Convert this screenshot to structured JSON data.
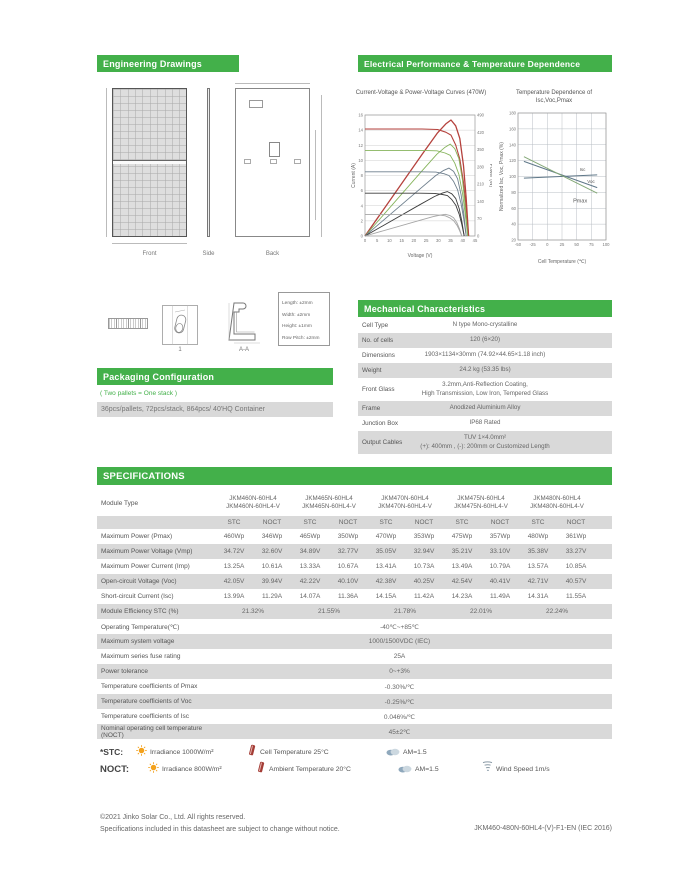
{
  "engineering": {
    "title": "Engineering Drawings",
    "views": [
      "Front",
      "Side",
      "Back"
    ],
    "detail_labels": [
      "1",
      "A-A"
    ],
    "tolerances": [
      "Length: ±2mm",
      "Width: ±2mm",
      "Height: ±1mm",
      "Row Pitch: ±2mm"
    ]
  },
  "electrical": {
    "title": "Electrical Performance & Temperature Dependence"
  },
  "mechanical": {
    "title": "Mechanical Characteristics",
    "rows": [
      {
        "label": "Cell  Type",
        "lines": [
          "N type Mono-crystalline"
        ]
      },
      {
        "label": "No. of cells",
        "lines": [
          "120 (6×20)"
        ]
      },
      {
        "label": "Dimensions",
        "lines": [
          "1903×1134×30mm (74.92×44.65×1.18 inch)"
        ]
      },
      {
        "label": "Weight",
        "lines": [
          "24.2 kg (53.35 lbs)"
        ]
      },
      {
        "label": "Front Glass",
        "lines": [
          "3.2mm,Anti-Reflection Coating,",
          "High Transmission, Low Iron, Tempered Glass"
        ]
      },
      {
        "label": "Frame",
        "lines": [
          "Anodized Aluminium Alloy"
        ]
      },
      {
        "label": "Junction Box",
        "lines": [
          "IP68 Rated"
        ]
      },
      {
        "label": "Output Cables",
        "lines": [
          "TUV  1×4.0mm²",
          "(+): 400mm , (-): 200mm or Customized Length"
        ]
      }
    ]
  },
  "packaging": {
    "title": "Packaging Configuration",
    "note": "( Two pallets = One stack )",
    "value": "36pcs/pallets, 72pcs/stack, 864pcs/ 40'HQ Container"
  },
  "specifications": {
    "title": "SPECIFICATIONS",
    "module_type_label": "Module Type",
    "modules": [
      [
        "JKM460N-60HL4",
        "JKM460N-60HL4-V"
      ],
      [
        "JKM465N-60HL4",
        "JKM465N-60HL4-V"
      ],
      [
        "JKM470N-60HL4",
        "JKM470N-60HL4-V"
      ],
      [
        "JKM475N-60HL4",
        "JKM475N-60HL4-V"
      ],
      [
        "JKM480N-60HL4",
        "JKM480N-60HL4-V"
      ]
    ],
    "col_headers": [
      "STC",
      "NOCT"
    ],
    "electrical_rows": [
      {
        "label": "Maximum Power (Pmax)",
        "values": [
          [
            "460Wp",
            "346Wp"
          ],
          [
            "465Wp",
            "350Wp"
          ],
          [
            "470Wp",
            "353Wp"
          ],
          [
            "475Wp",
            "357Wp"
          ],
          [
            "480Wp",
            "361Wp"
          ]
        ]
      },
      {
        "label": "Maximum Power Voltage (Vmp)",
        "values": [
          [
            "34.72V",
            "32.60V"
          ],
          [
            "34.89V",
            "32.77V"
          ],
          [
            "35.05V",
            "32.94V"
          ],
          [
            "35.21V",
            "33.10V"
          ],
          [
            "35.38V",
            "33.27V"
          ]
        ]
      },
      {
        "label": "Maximum Power Current (Imp)",
        "values": [
          [
            "13.25A",
            "10.61A"
          ],
          [
            "13.33A",
            "10.67A"
          ],
          [
            "13.41A",
            "10.73A"
          ],
          [
            "13.49A",
            "10.79A"
          ],
          [
            "13.57A",
            "10.85A"
          ]
        ]
      },
      {
        "label": "Open-circuit Voltage (Voc)",
        "values": [
          [
            "42.05V",
            "39.94V"
          ],
          [
            "42.22V",
            "40.10V"
          ],
          [
            "42.38V",
            "40.25V"
          ],
          [
            "42.54V",
            "40.41V"
          ],
          [
            "42.71V",
            "40.57V"
          ]
        ]
      },
      {
        "label": "Short-circuit Current (Isc)",
        "values": [
          [
            "13.99A",
            "11.29A"
          ],
          [
            "14.07A",
            "11.36A"
          ],
          [
            "14.15A",
            "11.42A"
          ],
          [
            "14.23A",
            "11.49A"
          ],
          [
            "14.31A",
            "11.55A"
          ]
        ]
      }
    ],
    "efficiency_row": {
      "label": "Module Efficiency STC (%)",
      "values": [
        "21.32%",
        "21.55%",
        "21.78%",
        "22.01%",
        "22.24%"
      ]
    },
    "general_rows": [
      {
        "label": "Operating Temperature(℃)",
        "value": "-40℃~+85℃"
      },
      {
        "label": "Maximum system voltage",
        "value": "1000/1500VDC (IEC)"
      },
      {
        "label": "Maximum series fuse rating",
        "value": "25A"
      },
      {
        "label": "Power tolerance",
        "value": "0~+3%"
      },
      {
        "label": "Temperature coefficients of Pmax",
        "value": "-0.30%/℃"
      },
      {
        "label": "Temperature coefficients of Voc",
        "value": "-0.25%/℃"
      },
      {
        "label": "Temperature coefficients of Isc",
        "value": "0.046%/℃"
      },
      {
        "label": "Nominal operating cell temperature  (NOCT)",
        "value": "45±2℃"
      }
    ]
  },
  "legend": {
    "stc": {
      "label": "*STC:",
      "items": [
        {
          "icon": "sun-icon",
          "text": "Irradiance 1000W/m²"
        },
        {
          "icon": "thermometer-icon",
          "text": "Cell Temperature 25°C"
        },
        {
          "icon": "cloud-icon",
          "text": "AM=1.5"
        }
      ]
    },
    "noct": {
      "label": "NOCT:",
      "items": [
        {
          "icon": "sun-icon",
          "text": "Irradiance 800W/m²"
        },
        {
          "icon": "thermometer-icon",
          "text": "Ambient Temperature 20°C"
        },
        {
          "icon": "cloud-icon",
          "text": "AM=1.5"
        },
        {
          "icon": "wind-icon",
          "text": "Wind Speed 1m/s"
        }
      ]
    }
  },
  "footer": {
    "line1": "©2021 Jinko Solar Co., Ltd. All rights reserved.",
    "line2": "Specifications included in this datasheet are subject to change without notice.",
    "code": "JKM460-480N-60HL4-(V)-F1-EN (IEC 2016)"
  },
  "chart_data": [
    {
      "type": "line",
      "title": "Current-Voltage & Power-Voltage Curves (470W)",
      "xlabel": "Voltage (V)",
      "ylabel": "Current (A)",
      "y2label": "Power (W)",
      "xlim": [
        0,
        45
      ],
      "ylim": [
        0,
        16
      ],
      "y2lim": [
        0,
        490
      ],
      "xticks": [
        0,
        5,
        10,
        15,
        20,
        25,
        30,
        35,
        40,
        45
      ],
      "yticks": [
        0,
        2,
        4,
        6,
        8,
        10,
        12,
        14,
        16
      ],
      "y2ticks": [
        0,
        70,
        140,
        210,
        280,
        350,
        420,
        490
      ],
      "grid": "h",
      "legend": false,
      "iv_shape": [
        [
          0,
          1
        ],
        [
          0.55,
          1
        ],
        [
          0.7,
          0.995
        ],
        [
          0.78,
          0.97
        ],
        [
          0.83,
          0.943
        ],
        [
          0.875,
          0.85
        ],
        [
          0.915,
          0.72
        ],
        [
          0.95,
          0.5
        ],
        [
          0.975,
          0.27
        ],
        [
          1,
          0
        ]
      ],
      "levels": [
        {
          "isc": 14.15,
          "voc": 42.4,
          "pmax": 470,
          "color": "#b5423d"
        },
        {
          "isc": 11.32,
          "voc": 42.0,
          "pmax": 376,
          "color": "#86b45c"
        },
        {
          "isc": 8.49,
          "voc": 41.4,
          "pmax": 281,
          "color": "#6e7f8d"
        },
        {
          "isc": 5.66,
          "voc": 40.6,
          "pmax": 184,
          "color": "#3c3c3c"
        },
        {
          "isc": 2.83,
          "voc": 39.6,
          "pmax": 90,
          "color": "#a6a6a6"
        }
      ]
    },
    {
      "type": "line",
      "title": "Temperature Dependence of Isc,Voc,Pmax",
      "xlabel": "Cell Temperature (℃)",
      "ylabel": "Normalized Isc, Voc, Pmax (%)",
      "xlim": [
        -50,
        100
      ],
      "ylim": [
        20,
        180
      ],
      "xticks": [
        -50,
        -25,
        0,
        25,
        50,
        75,
        100
      ],
      "yticks": [
        20,
        40,
        60,
        80,
        100,
        120,
        140,
        160,
        180
      ],
      "grid": "both",
      "legend": false,
      "series": [
        {
          "name": "Isc",
          "color": "#5f7788",
          "points": [
            [
              -40,
              98
            ],
            [
              85,
              102
            ]
          ]
        },
        {
          "name": "Voc",
          "color": "#5f7788",
          "points": [
            [
              -40,
              119
            ],
            [
              85,
              86
            ]
          ]
        },
        {
          "name": "Pmax",
          "color": "#84a877",
          "points": [
            [
              -40,
              125
            ],
            [
              85,
              79
            ]
          ]
        }
      ],
      "annotations": [
        {
          "text": "Isc",
          "x": 55,
          "y": 107,
          "size": 4.5
        },
        {
          "text": "Voc",
          "x": 68,
          "y": 92,
          "size": 4.5
        },
        {
          "text": "Pmax",
          "x": 44,
          "y": 67,
          "size": 5.5
        }
      ]
    }
  ]
}
